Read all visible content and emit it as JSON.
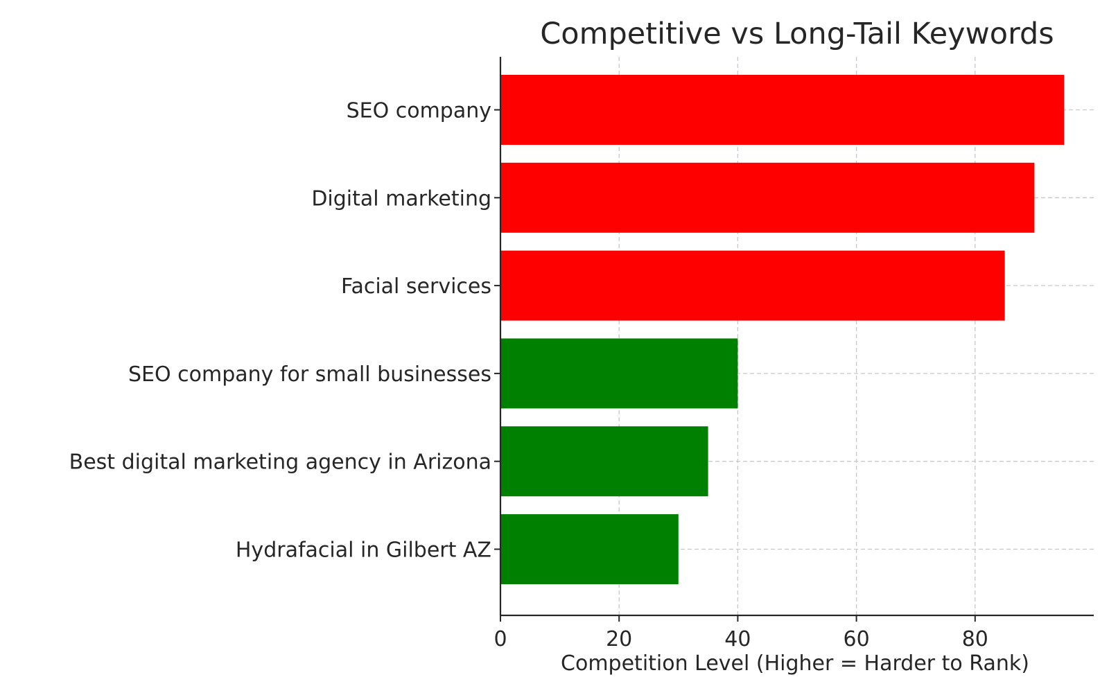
{
  "chart_data": {
    "type": "bar",
    "orientation": "horizontal",
    "title": "Competitive vs Long-Tail Keywords",
    "xlabel": "Competition Level (Higher = Harder to Rank)",
    "ylabel": "",
    "xlim": [
      0,
      100
    ],
    "xticks": [
      0,
      20,
      40,
      60,
      80
    ],
    "grid": true,
    "categories": [
      "SEO company",
      "Digital marketing",
      "Facial services",
      "SEO company for small businesses",
      "Best digital marketing agency in Arizona",
      "Hydrafacial in Gilbert AZ"
    ],
    "values": [
      95,
      90,
      85,
      40,
      35,
      30
    ],
    "colors": [
      "#ff0000",
      "#ff0000",
      "#ff0000",
      "#008000",
      "#008000",
      "#008000"
    ]
  }
}
